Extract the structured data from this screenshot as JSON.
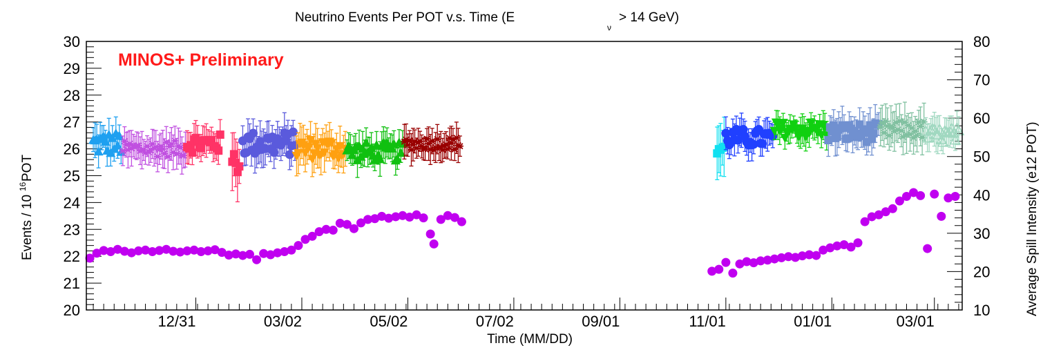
{
  "chart_data": {
    "type": "scatter",
    "title": "Neutrino Events Per POT v.s. Time (E",
    "title_sub": "ν",
    "title_tail": "> 14 GeV)",
    "annotation": "MINOS+ Preliminary",
    "annotation_color": "#ff1a1a",
    "xlabel": "Time (MM/DD)",
    "ylabel_main": "Events / 10",
    "ylabel_sup": "16",
    "ylabel_tail": " POT",
    "y2label": "Average Spill Intensity (e12 POT)",
    "x_ticks": [
      "12/31",
      "03/02",
      "05/02",
      "07/02",
      "09/01",
      "11/01",
      "01/01",
      "03/01"
    ],
    "x_tick_day": [
      -1,
      60,
      121,
      182,
      243,
      304,
      365,
      424
    ],
    "xlim_day": [
      -64,
      440
    ],
    "ylim": [
      20,
      30
    ],
    "y_ticks": [
      20,
      21,
      22,
      23,
      24,
      25,
      26,
      27,
      28,
      29,
      30
    ],
    "y2lim": [
      10,
      80
    ],
    "y2_ticks": [
      10,
      20,
      30,
      40,
      50,
      60,
      70,
      80
    ],
    "grid": false,
    "legend": "none",
    "event_groups": [
      {
        "color": "#1ea0f0",
        "marker": "triangle",
        "start": -60,
        "end": -44,
        "mean": 26.2,
        "spread": 0.45,
        "err": 0.5
      },
      {
        "color": "#c050e0",
        "marker": "star",
        "start": -43,
        "end": -7,
        "mean": 26.0,
        "spread": 0.3,
        "err": 0.55
      },
      {
        "color": "#ff3366",
        "marker": "square",
        "start": -6,
        "end": 13,
        "mean": 26.2,
        "spread": 0.35,
        "err": 0.5
      },
      {
        "color": "#ff3366",
        "marker": "square",
        "start": 20,
        "end": 24,
        "mean": 25.5,
        "spread": 0.5,
        "err": 0.9
      },
      {
        "color": "#5a5adc",
        "marker": "circle",
        "start": 26,
        "end": 56,
        "mean": 26.2,
        "spread": 0.45,
        "err": 0.6
      },
      {
        "color": "#ffa010",
        "marker": "triangle-down",
        "start": 57,
        "end": 85,
        "mean": 26.0,
        "spread": 0.4,
        "err": 0.6
      },
      {
        "color": "#10c010",
        "marker": "triangle",
        "start": 86,
        "end": 118,
        "mean": 25.9,
        "spread": 0.35,
        "err": 0.5
      },
      {
        "color": "#990000",
        "marker": "star",
        "start": 119,
        "end": 151,
        "mean": 26.2,
        "spread": 0.25,
        "err": 0.5
      },
      {
        "color": "#10e0f0",
        "marker": "square",
        "start": 299,
        "end": 303,
        "mean": 26.0,
        "spread": 0.6,
        "err": 0.9
      },
      {
        "color": "#2040ff",
        "marker": "circle",
        "start": 304,
        "end": 331,
        "mean": 26.4,
        "spread": 0.35,
        "err": 0.5
      },
      {
        "color": "#10d010",
        "marker": "triangle-down",
        "start": 332,
        "end": 362,
        "mean": 26.7,
        "spread": 0.3,
        "err": 0.45
      },
      {
        "color": "#7090d0",
        "marker": "square",
        "start": 363,
        "end": 392,
        "mean": 26.6,
        "spread": 0.35,
        "err": 0.55
      },
      {
        "color": "#80c0a0",
        "marker": "star",
        "start": 393,
        "end": 418,
        "mean": 26.7,
        "spread": 0.35,
        "err": 0.6
      },
      {
        "color": "#a0d8c0",
        "marker": "triangle-open",
        "start": 419,
        "end": 438,
        "mean": 26.5,
        "spread": 0.3,
        "err": 0.55
      }
    ],
    "intensity_color": "#c000f0",
    "intensity_points": [
      [
        -62,
        23.5
      ],
      [
        -58,
        24.8
      ],
      [
        -54,
        25.5
      ],
      [
        -50,
        25.2
      ],
      [
        -46,
        25.8
      ],
      [
        -42,
        25.3
      ],
      [
        -38,
        24.9
      ],
      [
        -34,
        25.4
      ],
      [
        -30,
        25.6
      ],
      [
        -26,
        25.2
      ],
      [
        -22,
        25.5
      ],
      [
        -18,
        25.8
      ],
      [
        -14,
        25.3
      ],
      [
        -10,
        25.1
      ],
      [
        -6,
        25.4
      ],
      [
        -2,
        25.6
      ],
      [
        2,
        25.2
      ],
      [
        6,
        25.4
      ],
      [
        10,
        25.7
      ],
      [
        14,
        25.0
      ],
      [
        18,
        24.3
      ],
      [
        22,
        24.6
      ],
      [
        26,
        24.2
      ],
      [
        30,
        24.5
      ],
      [
        34,
        23.1
      ],
      [
        38,
        24.7
      ],
      [
        42,
        24.4
      ],
      [
        46,
        24.9
      ],
      [
        50,
        25.2
      ],
      [
        54,
        25.6
      ],
      [
        58,
        26.8
      ],
      [
        62,
        28.4
      ],
      [
        66,
        29.2
      ],
      [
        70,
        30.4
      ],
      [
        74,
        31.0
      ],
      [
        78,
        30.8
      ],
      [
        82,
        32.6
      ],
      [
        86,
        32.3
      ],
      [
        90,
        31.2
      ],
      [
        94,
        32.7
      ],
      [
        98,
        33.6
      ],
      [
        102,
        33.8
      ],
      [
        106,
        34.4
      ],
      [
        110,
        33.9
      ],
      [
        114,
        34.3
      ],
      [
        118,
        34.6
      ],
      [
        122,
        34.2
      ],
      [
        126,
        34.8
      ],
      [
        130,
        34.0
      ],
      [
        134,
        29.8
      ],
      [
        136,
        27.2
      ],
      [
        140,
        33.6
      ],
      [
        144,
        34.6
      ],
      [
        148,
        34.1
      ],
      [
        152,
        33.0
      ],
      [
        296,
        20.1
      ],
      [
        300,
        20.6
      ],
      [
        304,
        22.4
      ],
      [
        308,
        19.6
      ],
      [
        312,
        22.0
      ],
      [
        316,
        22.6
      ],
      [
        320,
        22.3
      ],
      [
        324,
        22.8
      ],
      [
        328,
        23.0
      ],
      [
        332,
        23.3
      ],
      [
        336,
        23.6
      ],
      [
        340,
        23.9
      ],
      [
        344,
        23.7
      ],
      [
        348,
        24.1
      ],
      [
        352,
        24.4
      ],
      [
        356,
        24.2
      ],
      [
        360,
        25.6
      ],
      [
        364,
        26.2
      ],
      [
        368,
        26.7
      ],
      [
        372,
        27.0
      ],
      [
        376,
        26.4
      ],
      [
        380,
        27.5
      ],
      [
        384,
        33.0
      ],
      [
        388,
        34.3
      ],
      [
        392,
        34.8
      ],
      [
        396,
        35.6
      ],
      [
        400,
        36.4
      ],
      [
        404,
        38.4
      ],
      [
        408,
        39.6
      ],
      [
        412,
        40.6
      ],
      [
        416,
        39.8
      ],
      [
        420,
        26.0
      ],
      [
        424,
        40.2
      ],
      [
        428,
        34.4
      ],
      [
        432,
        39.2
      ],
      [
        436,
        39.6
      ]
    ]
  }
}
